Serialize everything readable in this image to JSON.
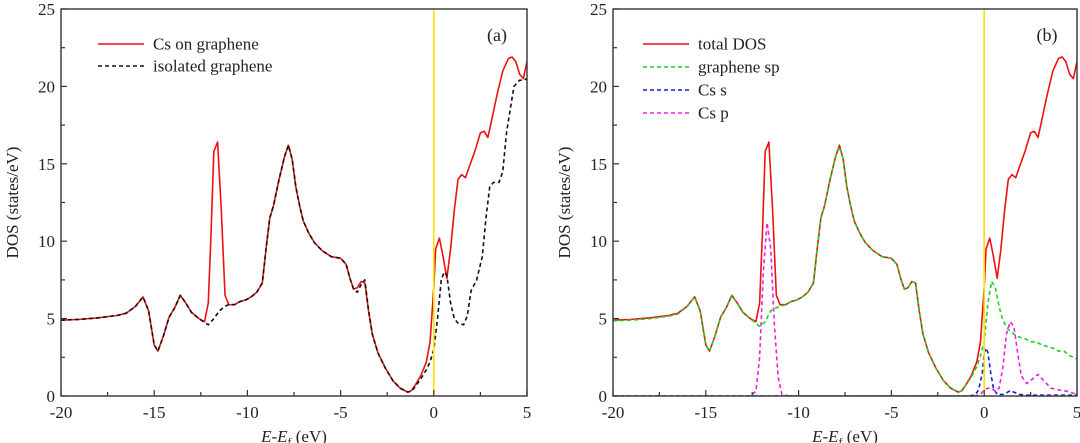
{
  "chart_data": [
    {
      "type": "line",
      "panel_label": "(a)",
      "title": "",
      "xlabel": {
        "main": "E-E",
        "sub": "f",
        "unit": " (eV)"
      },
      "ylabel": "DOS (states/eV)",
      "xlim": [
        -20,
        5
      ],
      "ylim": [
        0,
        25
      ],
      "xticks": [
        -20,
        -15,
        -10,
        -5,
        0,
        5
      ],
      "yticks": [
        0,
        5,
        10,
        15,
        20,
        25
      ],
      "xtick_labels": [
        "-20",
        "-15",
        "-10",
        "-5",
        "0",
        "5"
      ],
      "ytick_labels": [
        "0",
        "5",
        "10",
        "15",
        "20",
        "25"
      ],
      "fermi_line": {
        "x": 0,
        "color": "#ffe000"
      },
      "legend": {
        "placement": "top-left"
      },
      "series": [
        {
          "name": "Cs on graphene",
          "color": "#ee1111",
          "style": "solid",
          "x": [
            -20,
            -19,
            -18,
            -17,
            -16.5,
            -16,
            -15.6,
            -15.3,
            -15,
            -14.8,
            -14.5,
            -14.2,
            -13.9,
            -13.6,
            -13.3,
            -13,
            -12.6,
            -12.3,
            -12.1,
            -11.95,
            -11.8,
            -11.6,
            -11.4,
            -11.2,
            -11,
            -10.7,
            -10.4,
            -10.1,
            -9.8,
            -9.5,
            -9.2,
            -9,
            -8.8,
            -8.6,
            -8.3,
            -8,
            -7.8,
            -7.6,
            -7.4,
            -7.2,
            -7,
            -6.7,
            -6.4,
            -6,
            -5.5,
            -5,
            -4.7,
            -4.5,
            -4.3,
            -4.1,
            -3.9,
            -3.7,
            -3.5,
            -3.3,
            -3,
            -2.6,
            -2.2,
            -1.8,
            -1.4,
            -1.2,
            -1,
            -0.7,
            -0.4,
            -0.2,
            0,
            0.1,
            0.3,
            0.5,
            0.7,
            0.9,
            1.1,
            1.3,
            1.5,
            1.7,
            1.9,
            2.2,
            2.5,
            2.7,
            2.9,
            3.1,
            3.4,
            3.7,
            4,
            4.2,
            4.4,
            4.6,
            4.8,
            5
          ],
          "y": [
            4.9,
            4.95,
            5.05,
            5.2,
            5.35,
            5.8,
            6.4,
            5.5,
            3.3,
            2.9,
            3.9,
            5.1,
            5.7,
            6.5,
            6.0,
            5.4,
            5.0,
            4.8,
            6.0,
            10.5,
            15.8,
            16.4,
            12.0,
            6.5,
            5.9,
            5.9,
            6.1,
            6.2,
            6.4,
            6.7,
            7.3,
            9.5,
            11.5,
            12.3,
            14.0,
            15.5,
            16.2,
            15.3,
            13.5,
            12.3,
            11.3,
            10.5,
            9.9,
            9.4,
            9.0,
            8.9,
            8.5,
            7.6,
            6.9,
            7.0,
            7.4,
            7.3,
            5.5,
            4.0,
            2.8,
            1.8,
            1.0,
            0.5,
            0.25,
            0.35,
            0.7,
            1.3,
            2.2,
            3.5,
            7.0,
            9.5,
            10.2,
            9.0,
            7.6,
            9.5,
            12.0,
            14.0,
            14.3,
            14.1,
            14.8,
            15.8,
            17.0,
            17.1,
            16.7,
            17.8,
            19.5,
            21.0,
            21.8,
            21.9,
            21.6,
            20.8,
            20.5,
            21.6
          ]
        },
        {
          "name": "isolated graphene",
          "color": "#111111",
          "style": "dashed",
          "x": [
            -20,
            -19,
            -18,
            -17,
            -16.5,
            -16,
            -15.6,
            -15.3,
            -15,
            -14.8,
            -14.5,
            -14.2,
            -13.9,
            -13.6,
            -13.3,
            -13,
            -12.6,
            -12.3,
            -12.1,
            -11.8,
            -11.5,
            -11.2,
            -11,
            -10.7,
            -10.4,
            -10.1,
            -9.8,
            -9.5,
            -9.2,
            -9,
            -8.8,
            -8.6,
            -8.3,
            -8,
            -7.8,
            -7.6,
            -7.4,
            -7.2,
            -7,
            -6.7,
            -6.4,
            -6,
            -5.5,
            -5,
            -4.7,
            -4.5,
            -4.3,
            -4.1,
            -3.9,
            -3.7,
            -3.5,
            -3.3,
            -3,
            -2.6,
            -2.2,
            -1.8,
            -1.4,
            -1.2,
            -1,
            -0.7,
            -0.4,
            -0.2,
            0,
            0.2,
            0.4,
            0.55,
            0.7,
            0.9,
            1.1,
            1.3,
            1.6,
            1.8,
            2.0,
            2.3,
            2.6,
            2.8,
            3.0,
            3.2,
            3.5,
            3.7,
            3.9,
            4.1,
            4.3,
            4.6,
            4.8,
            5
          ],
          "y": [
            4.9,
            4.95,
            5.05,
            5.2,
            5.35,
            5.8,
            6.4,
            5.5,
            3.3,
            2.9,
            3.9,
            5.1,
            5.7,
            6.5,
            6.0,
            5.4,
            5.0,
            4.75,
            4.6,
            5.0,
            5.5,
            5.8,
            5.9,
            5.9,
            6.1,
            6.2,
            6.4,
            6.7,
            7.3,
            9.5,
            11.5,
            12.3,
            14.0,
            15.5,
            16.2,
            15.3,
            13.5,
            12.3,
            11.3,
            10.5,
            9.9,
            9.4,
            9.0,
            8.9,
            8.5,
            7.6,
            6.9,
            6.7,
            7.2,
            7.5,
            5.5,
            4.0,
            2.8,
            1.8,
            1.0,
            0.5,
            0.25,
            0.3,
            0.6,
            1.1,
            1.7,
            2.2,
            3.0,
            5.0,
            7.5,
            8.0,
            7.8,
            6.0,
            5.0,
            4.7,
            4.6,
            5.2,
            6.8,
            7.5,
            9.0,
            11.5,
            13.5,
            13.8,
            13.8,
            14.5,
            17.0,
            18.5,
            20.0,
            20.4,
            20.4,
            20.5
          ]
        }
      ]
    },
    {
      "type": "line",
      "panel_label": "(b)",
      "title": "",
      "xlabel": {
        "main": "E-E",
        "sub": "f",
        "unit": " (eV)"
      },
      "ylabel": "DOS (states/eV)",
      "xlim": [
        -20,
        5
      ],
      "ylim": [
        0,
        25
      ],
      "xticks": [
        -20,
        -15,
        -10,
        -5,
        0,
        5
      ],
      "yticks": [
        0,
        5,
        10,
        15,
        20,
        25
      ],
      "xtick_labels": [
        "-20",
        "-15",
        "-10",
        "-5",
        "0",
        "5"
      ],
      "ytick_labels": [
        "0",
        "5",
        "10",
        "15",
        "20",
        "25"
      ],
      "fermi_line": {
        "x": 0,
        "color": "#ffe000"
      },
      "legend": {
        "placement": "top-left"
      },
      "series": [
        {
          "name": "total DOS",
          "color": "#ee1111",
          "style": "solid",
          "x": [
            -20,
            -19,
            -18,
            -17,
            -16.5,
            -16,
            -15.6,
            -15.3,
            -15,
            -14.8,
            -14.5,
            -14.2,
            -13.9,
            -13.6,
            -13.3,
            -13,
            -12.6,
            -12.3,
            -12.1,
            -11.95,
            -11.8,
            -11.6,
            -11.4,
            -11.2,
            -11,
            -10.7,
            -10.4,
            -10.1,
            -9.8,
            -9.5,
            -9.2,
            -9,
            -8.8,
            -8.6,
            -8.3,
            -8,
            -7.8,
            -7.6,
            -7.4,
            -7.2,
            -7,
            -6.7,
            -6.4,
            -6,
            -5.5,
            -5,
            -4.7,
            -4.5,
            -4.3,
            -4.1,
            -3.9,
            -3.7,
            -3.5,
            -3.3,
            -3,
            -2.6,
            -2.2,
            -1.8,
            -1.4,
            -1.2,
            -1,
            -0.7,
            -0.4,
            -0.2,
            0,
            0.1,
            0.3,
            0.5,
            0.7,
            0.9,
            1.1,
            1.3,
            1.5,
            1.7,
            1.9,
            2.2,
            2.5,
            2.7,
            2.9,
            3.1,
            3.4,
            3.7,
            4,
            4.2,
            4.4,
            4.6,
            4.8,
            5
          ],
          "y": [
            4.9,
            4.95,
            5.05,
            5.2,
            5.35,
            5.8,
            6.4,
            5.5,
            3.3,
            2.9,
            3.9,
            5.1,
            5.7,
            6.5,
            6.0,
            5.4,
            5.0,
            4.8,
            6.0,
            10.5,
            15.8,
            16.4,
            12.0,
            6.5,
            5.9,
            5.9,
            6.1,
            6.2,
            6.4,
            6.7,
            7.3,
            9.5,
            11.5,
            12.3,
            14.0,
            15.5,
            16.2,
            15.3,
            13.5,
            12.3,
            11.3,
            10.5,
            9.9,
            9.4,
            9.0,
            8.9,
            8.5,
            7.6,
            6.9,
            7.0,
            7.4,
            7.3,
            5.5,
            4.0,
            2.8,
            1.8,
            1.0,
            0.5,
            0.25,
            0.35,
            0.7,
            1.3,
            2.2,
            3.5,
            7.0,
            9.5,
            10.2,
            9.0,
            7.6,
            9.5,
            12.0,
            14.0,
            14.3,
            14.1,
            14.8,
            15.8,
            17.0,
            17.1,
            16.7,
            17.8,
            19.5,
            21.0,
            21.8,
            21.9,
            21.6,
            20.8,
            20.5,
            21.6
          ]
        },
        {
          "name": "graphene sp",
          "color": "#22cc22",
          "style": "dashed",
          "x": [
            -20,
            -19,
            -18,
            -17,
            -16.5,
            -16,
            -15.6,
            -15.3,
            -15,
            -14.8,
            -14.5,
            -14.2,
            -13.9,
            -13.6,
            -13.3,
            -13,
            -12.6,
            -12.3,
            -12.1,
            -11.8,
            -11.5,
            -11.2,
            -11,
            -10.7,
            -10.4,
            -10.1,
            -9.8,
            -9.5,
            -9.2,
            -9,
            -8.8,
            -8.6,
            -8.3,
            -8,
            -7.8,
            -7.6,
            -7.4,
            -7.2,
            -7,
            -6.7,
            -6.4,
            -6,
            -5.5,
            -5,
            -4.7,
            -4.5,
            -4.3,
            -4.1,
            -3.9,
            -3.7,
            -3.5,
            -3.3,
            -3,
            -2.6,
            -2.2,
            -1.8,
            -1.4,
            -1.2,
            -1,
            -0.7,
            -0.4,
            -0.2,
            0,
            0.2,
            0.4,
            0.6,
            0.8,
            1.0,
            1.3,
            1.6,
            1.9,
            2.2,
            2.5,
            2.8,
            3.1,
            3.4,
            3.7,
            4.0,
            4.3,
            4.6,
            5
          ],
          "y": [
            4.85,
            4.9,
            5.0,
            5.15,
            5.3,
            5.8,
            6.4,
            5.5,
            3.3,
            2.9,
            3.9,
            5.1,
            5.7,
            6.5,
            6.0,
            5.4,
            5.0,
            4.7,
            4.5,
            4.8,
            5.5,
            5.7,
            5.8,
            5.9,
            6.1,
            6.2,
            6.4,
            6.7,
            7.3,
            9.5,
            11.5,
            12.3,
            14.0,
            15.5,
            16.1,
            15.3,
            13.5,
            12.3,
            11.3,
            10.5,
            9.9,
            9.4,
            9.0,
            8.9,
            8.5,
            7.6,
            6.9,
            7.0,
            7.4,
            7.3,
            5.5,
            4.0,
            2.8,
            1.8,
            1.0,
            0.5,
            0.25,
            0.35,
            0.7,
            1.2,
            1.9,
            2.6,
            3.5,
            6.0,
            7.4,
            7.0,
            5.8,
            4.9,
            4.3,
            4.0,
            3.8,
            3.7,
            3.5,
            3.5,
            3.3,
            3.2,
            3.1,
            2.9,
            2.9,
            2.6,
            2.4
          ]
        },
        {
          "name": "Cs s",
          "color": "#1122cc",
          "style": "dashed",
          "x": [
            -20,
            -5,
            -1,
            -0.5,
            -0.3,
            -0.1,
            0,
            0.1,
            0.2,
            0.35,
            0.5,
            0.7,
            1.0,
            1.2,
            1.4,
            1.6,
            1.9,
            2.3,
            3,
            4,
            5
          ],
          "y": [
            0,
            0,
            0,
            0.05,
            0.4,
            1.5,
            2.8,
            3.1,
            2.8,
            1.5,
            0.5,
            0.1,
            0.1,
            0.2,
            0.35,
            0.25,
            0.1,
            0.05,
            0.05,
            0.05,
            0.05
          ]
        },
        {
          "name": "Cs p",
          "color": "#ee22dd",
          "style": "dashed",
          "x": [
            -20,
            -13,
            -12.6,
            -12.3,
            -12.1,
            -11.9,
            -11.7,
            -11.5,
            -11.3,
            -11.1,
            -10.9,
            -10.5,
            -3,
            -0.5,
            -0.2,
            0,
            0.2,
            0.4,
            0.6,
            0.8,
            1.0,
            1.2,
            1.4,
            1.6,
            1.8,
            2.0,
            2.3,
            2.6,
            2.9,
            3.2,
            3.6,
            4.0,
            4.5,
            5
          ],
          "y": [
            0,
            0,
            0,
            0.3,
            2.5,
            8.0,
            11.2,
            9.5,
            4.5,
            1.2,
            0.1,
            0,
            0,
            0,
            0.1,
            0.4,
            0.5,
            0.5,
            0.3,
            0.5,
            1.8,
            4.0,
            4.8,
            4.5,
            2.8,
            1.3,
            0.8,
            1.1,
            1.4,
            1.0,
            0.5,
            0.4,
            0.3,
            0.1
          ]
        }
      ]
    }
  ]
}
